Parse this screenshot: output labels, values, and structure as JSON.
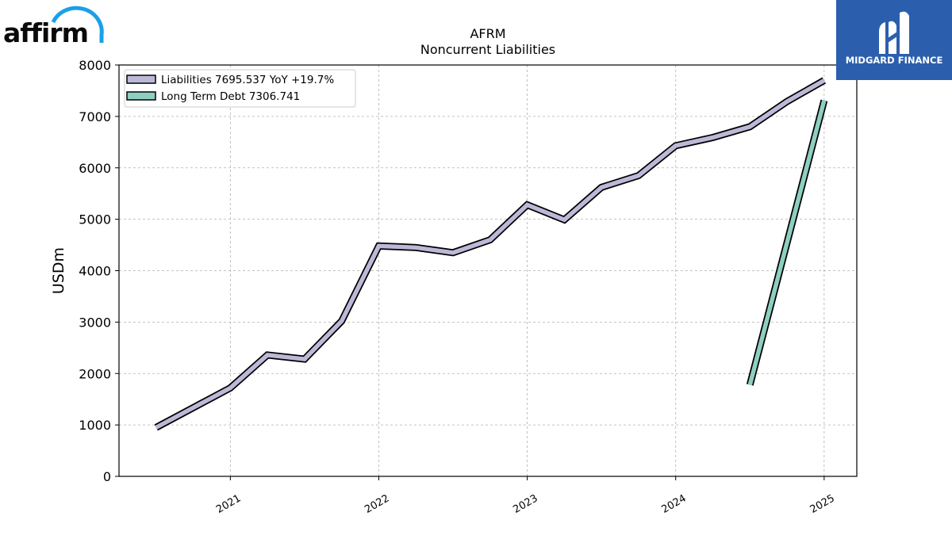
{
  "logos": {
    "left_brand": "affirm",
    "right_brand": "MIDGARD FINANCE",
    "right_bg_color": "#2b5fae",
    "left_arc_color": "#1aa0e8"
  },
  "chart_data": {
    "type": "line",
    "title": "AFRM",
    "subtitle": "Noncurrent  Liabilities",
    "ylabel": "USDm",
    "xlabel": "",
    "xlim": [
      2020.25,
      2025.22
    ],
    "ylim": [
      0,
      8000
    ],
    "yticks": [
      0,
      1000,
      2000,
      3000,
      4000,
      5000,
      6000,
      7000,
      8000
    ],
    "xticks": [
      {
        "value": 2021,
        "label": "2021"
      },
      {
        "value": 2022,
        "label": "2022"
      },
      {
        "value": 2023,
        "label": "2023"
      },
      {
        "value": 2024,
        "label": "2024"
      },
      {
        "value": 2025,
        "label": "2025"
      }
    ],
    "grid": true,
    "legend_position": "top-left",
    "series": [
      {
        "name": "Liabilities",
        "legend_label": "Liabilities  7695.537 YoY +19.7%",
        "color": "#bcb8d8",
        "x": [
          2020.5,
          2021.0,
          2021.25,
          2021.5,
          2021.75,
          2022.0,
          2022.25,
          2022.5,
          2022.75,
          2023.0,
          2023.25,
          2023.5,
          2023.75,
          2024.0,
          2024.25,
          2024.5,
          2024.75,
          2025.0
        ],
        "y": [
          950,
          1720,
          2360,
          2280,
          3020,
          4480,
          4450,
          4350,
          4600,
          5280,
          4990,
          5620,
          5850,
          6430,
          6590,
          6800,
          7290,
          7700
        ]
      },
      {
        "name": "Long Term Debt",
        "legend_label": "Long Term Debt  7306.741",
        "color": "#8dcfc0",
        "x": [
          2024.5,
          2025.0
        ],
        "y": [
          1780,
          7310
        ]
      }
    ]
  }
}
